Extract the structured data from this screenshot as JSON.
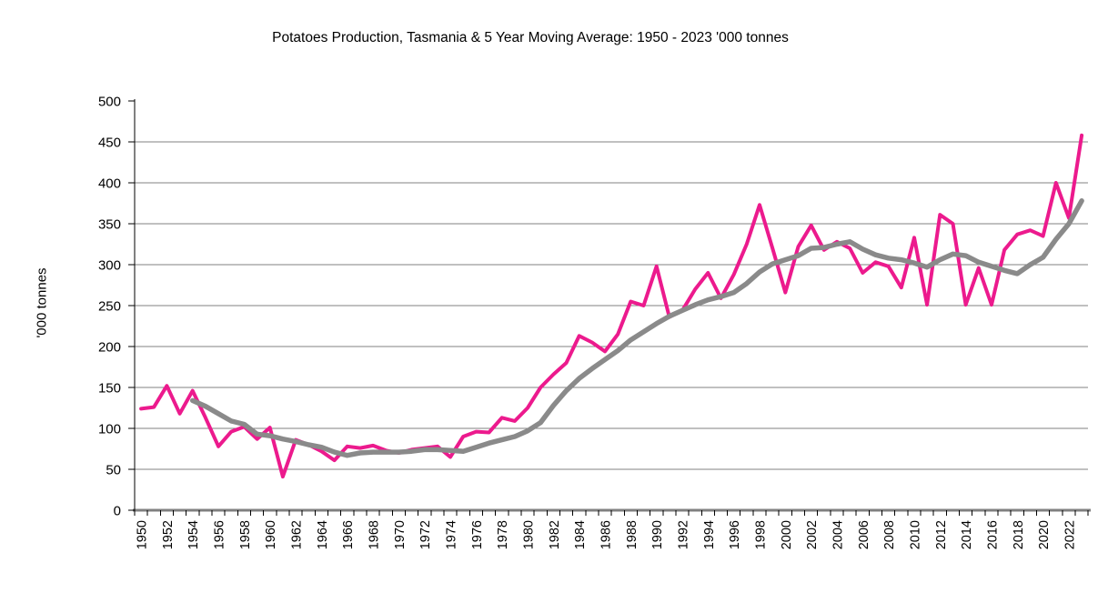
{
  "chart_data": {
    "type": "line",
    "title": "Potatoes Production, Tasmania & 5 Year Moving Average: 1950 - 2023 '000 tonnes",
    "xlabel": "",
    "ylabel": "'000 tonnes",
    "ylim": [
      0,
      500
    ],
    "y_tick_step": 50,
    "x_label_step": 2,
    "grid": true,
    "legend_position": "none",
    "grid_color": "#808080",
    "baseline_color": "#808080",
    "axis_color": "#000000",
    "x": [
      1950,
      1951,
      1952,
      1953,
      1954,
      1955,
      1956,
      1957,
      1958,
      1959,
      1960,
      1961,
      1962,
      1963,
      1964,
      1965,
      1966,
      1967,
      1968,
      1969,
      1970,
      1971,
      1972,
      1973,
      1974,
      1975,
      1976,
      1977,
      1978,
      1979,
      1980,
      1981,
      1982,
      1983,
      1984,
      1985,
      1986,
      1987,
      1988,
      1989,
      1990,
      1991,
      1992,
      1993,
      1994,
      1995,
      1996,
      1997,
      1998,
      1999,
      2000,
      2001,
      2002,
      2003,
      2004,
      2005,
      2006,
      2007,
      2008,
      2009,
      2010,
      2011,
      2012,
      2013,
      2014,
      2015,
      2016,
      2017,
      2018,
      2019,
      2020,
      2021,
      2022,
      2023
    ],
    "series": [
      {
        "name": "Potatoes Production",
        "color": "#EC1A8D",
        "values": [
          124,
          126,
          152,
          118,
          146,
          113,
          78,
          96,
          102,
          87,
          101,
          41,
          86,
          80,
          72,
          61,
          78,
          76,
          79,
          73,
          70,
          74,
          76,
          78,
          65,
          90,
          96,
          95,
          113,
          109,
          125,
          150,
          166,
          180,
          213,
          205,
          194,
          215,
          255,
          250,
          298,
          236,
          244,
          270,
          290,
          259,
          288,
          325,
          373,
          320,
          266,
          322,
          348,
          318,
          328,
          320,
          290,
          303,
          298,
          272,
          333,
          251,
          361,
          350,
          251,
          296,
          251,
          318,
          337,
          342,
          335,
          400,
          357,
          458
        ]
      },
      {
        "name": "5 Year Moving Average",
        "color": "#8A8A8A",
        "values": [
          null,
          null,
          null,
          null,
          134,
          127,
          118,
          109,
          105,
          93,
          91,
          87,
          84,
          80,
          77,
          71,
          67,
          70,
          71,
          71,
          71,
          72,
          74,
          74,
          73,
          72,
          77,
          82,
          86,
          90,
          97,
          107,
          128,
          146,
          161,
          173,
          184,
          195,
          208,
          218,
          228,
          237,
          244,
          251,
          257,
          261,
          266,
          277,
          291,
          301,
          306,
          311,
          320,
          321,
          325,
          328,
          319,
          312,
          308,
          306,
          302,
          297,
          306,
          313,
          311,
          303,
          298,
          293,
          289,
          300,
          309,
          331,
          350,
          378
        ]
      }
    ]
  }
}
